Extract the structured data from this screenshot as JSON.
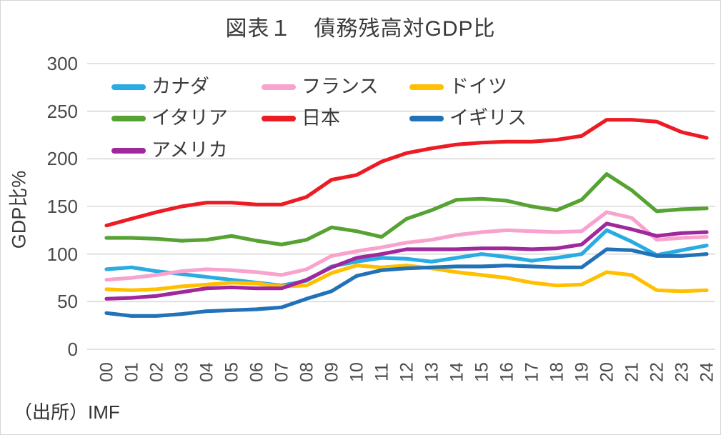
{
  "chart": {
    "title": "図表１　債務残高対GDP比",
    "y_axis_label": "GDP比%",
    "source": "（出所）IMF"
  },
  "chart_data": {
    "type": "line",
    "title": "図表１　債務残高対GDP比",
    "xlabel": "",
    "ylabel": "GDP比%",
    "ylim": [
      0,
      300
    ],
    "y_ticks": [
      0,
      50,
      100,
      150,
      200,
      250,
      300
    ],
    "grid": "horizontal",
    "gridline_color": "#d9d9d9",
    "legend_position": "inside-top-left",
    "x_labels": [
      "00",
      "01",
      "02",
      "03",
      "04",
      "05",
      "06",
      "07",
      "08",
      "09",
      "10",
      "11",
      "12",
      "13",
      "14",
      "15",
      "16",
      "17",
      "18",
      "19",
      "20",
      "21",
      "22",
      "23",
      "24"
    ],
    "series": [
      {
        "name": "カナダ",
        "color": "#28ACE3",
        "values": [
          84,
          86,
          82,
          79,
          76,
          73,
          70,
          67,
          72,
          87,
          92,
          96,
          95,
          92,
          96,
          100,
          97,
          93,
          96,
          100,
          125,
          113,
          99,
          104,
          109
        ]
      },
      {
        "name": "フランス",
        "color": "#F8A3CE",
        "values": [
          73,
          75,
          78,
          82,
          84,
          83,
          81,
          78,
          84,
          98,
          103,
          107,
          112,
          115,
          120,
          123,
          125,
          124,
          123,
          124,
          144,
          138,
          115,
          117,
          118
        ]
      },
      {
        "name": "ドイツ",
        "color": "#FFC000",
        "values": [
          63,
          62,
          63,
          66,
          68,
          70,
          69,
          66,
          67,
          80,
          88,
          86,
          88,
          85,
          81,
          78,
          75,
          70,
          67,
          68,
          81,
          78,
          62,
          61,
          62
        ]
      },
      {
        "name": "イタリア",
        "color": "#56A334",
        "values": [
          117,
          117,
          116,
          114,
          115,
          119,
          114,
          110,
          115,
          128,
          124,
          118,
          137,
          146,
          157,
          158,
          156,
          150,
          146,
          157,
          184,
          167,
          145,
          147,
          148
        ]
      },
      {
        "name": "日本",
        "color": "#ED1C24",
        "values": [
          130,
          137,
          144,
          150,
          154,
          154,
          152,
          152,
          160,
          178,
          183,
          197,
          206,
          211,
          215,
          217,
          218,
          218,
          220,
          224,
          241,
          241,
          239,
          228,
          222
        ]
      },
      {
        "name": "イギリス",
        "color": "#2172B8",
        "values": [
          38,
          35,
          35,
          37,
          40,
          41,
          42,
          44,
          53,
          61,
          77,
          83,
          85,
          86,
          87,
          87,
          88,
          87,
          86,
          86,
          105,
          104,
          98,
          98,
          100
        ]
      },
      {
        "name": "アメリカ",
        "color": "#A0289C",
        "values": [
          53,
          54,
          56,
          60,
          64,
          65,
          64,
          64,
          73,
          86,
          96,
          100,
          105,
          105,
          105,
          106,
          106,
          105,
          106,
          110,
          132,
          126,
          119,
          122,
          123
        ]
      }
    ]
  }
}
